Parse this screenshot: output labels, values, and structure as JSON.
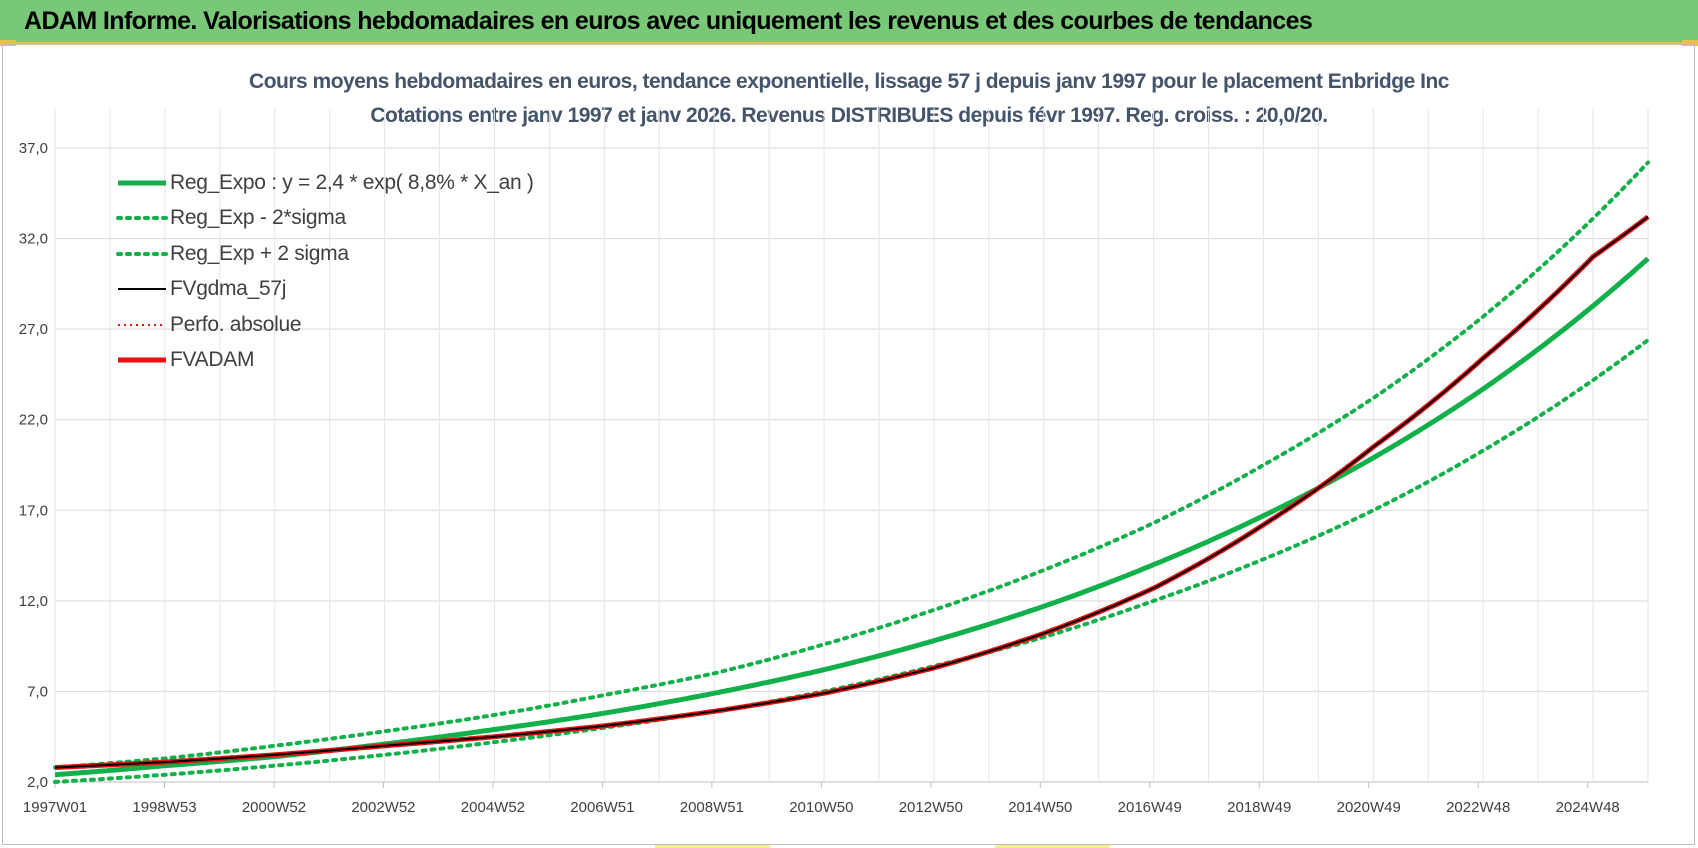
{
  "header": {
    "title": "ADAM Informe. Valorisations hebdomadaires en euros avec uniquement les revenus et des courbes de tendances"
  },
  "colors": {
    "header_bg": "#78c878",
    "green": "#12b04a",
    "red": "#e61010",
    "black": "#000000",
    "title": "#44546a"
  },
  "chart_data": {
    "type": "line",
    "title": "Cours moyens hebdomadaires en euros, tendance exponentielle, lissage 57 j depuis janv 1997  pour le placement Enbridge Inc",
    "subtitle": "Cotations entre janv 1997 et janv 2026. Revenus DISTRIBUES depuis févr 1997. Reg. croiss. : 20,0/20.",
    "x_tick_labels": [
      "1997W01",
      "1998W53",
      "2000W52",
      "2002W52",
      "2004W52",
      "2006W51",
      "2008W51",
      "2010W50",
      "2012W50",
      "2014W50",
      "2016W49",
      "2018W49",
      "2020W49",
      "2022W48",
      "2024W48"
    ],
    "x_range_years": [
      1997.0,
      2026.0
    ],
    "y_tick_labels": [
      "2,0",
      "7,0",
      "12,0",
      "17,0",
      "22,0",
      "27,0",
      "32,0",
      "37,0"
    ],
    "ylim": [
      2.0,
      37.0
    ],
    "grid": true,
    "legend_position": "top-left",
    "series": [
      {
        "name": "Reg_Expo : y = 2,4 * exp( 8,8% *  X_an )",
        "style": "solid-green",
        "x": [
          1997,
          1999,
          2001,
          2003,
          2005,
          2007,
          2009,
          2011,
          2013,
          2015,
          2017,
          2019,
          2021,
          2023,
          2026
        ],
        "y": [
          2.4,
          2.9,
          3.4,
          4.1,
          4.9,
          5.8,
          6.9,
          8.2,
          9.8,
          11.7,
          14.0,
          16.7,
          19.9,
          23.7,
          30.9
        ]
      },
      {
        "name": "Reg_Exp - 2*sigma",
        "style": "dotted-green",
        "x": [
          1997,
          1999,
          2001,
          2003,
          2005,
          2007,
          2009,
          2011,
          2013,
          2015,
          2017,
          2019,
          2021,
          2023,
          2026
        ],
        "y": [
          2.0,
          2.4,
          2.9,
          3.5,
          4.2,
          5.0,
          5.9,
          7.0,
          8.4,
          10.0,
          12.0,
          14.3,
          17.0,
          20.3,
          26.4
        ]
      },
      {
        "name": "Reg_Exp + 2 sigma",
        "style": "dotted-green",
        "x": [
          1997,
          1999,
          2001,
          2003,
          2005,
          2007,
          2009,
          2011,
          2013,
          2015,
          2017,
          2019,
          2021,
          2023,
          2026
        ],
        "y": [
          2.8,
          3.3,
          4.0,
          4.8,
          5.7,
          6.8,
          8.0,
          9.6,
          11.5,
          13.7,
          16.3,
          19.5,
          23.2,
          27.7,
          36.2
        ]
      },
      {
        "name": "FVgdma_57j",
        "style": "solid-black",
        "x": [
          1997,
          1999,
          2001,
          2003,
          2005,
          2007,
          2009,
          2011,
          2013,
          2015,
          2017,
          2019,
          2021,
          2023,
          2025,
          2026
        ],
        "y": [
          2.8,
          3.1,
          3.5,
          4.0,
          4.5,
          5.1,
          5.9,
          6.9,
          8.3,
          10.2,
          12.7,
          16.2,
          20.5,
          25.4,
          31.0,
          33.2
        ]
      },
      {
        "name": "Perfo. absolue",
        "style": "dotted-red",
        "x": [
          1997,
          1999,
          2001,
          2003,
          2005,
          2007,
          2009,
          2011,
          2013,
          2015,
          2017,
          2019,
          2021,
          2023,
          2025,
          2026
        ],
        "y": [
          2.8,
          3.1,
          3.5,
          4.0,
          4.5,
          5.1,
          5.9,
          6.9,
          8.3,
          10.2,
          12.7,
          16.2,
          20.5,
          25.4,
          31.0,
          33.2
        ]
      },
      {
        "name": "FVADAM",
        "style": "solid-red",
        "x": [
          1997,
          1999,
          2001,
          2003,
          2005,
          2007,
          2009,
          2011,
          2013,
          2015,
          2017,
          2019,
          2021,
          2023,
          2025,
          2026
        ],
        "y": [
          2.8,
          3.1,
          3.5,
          4.0,
          4.5,
          5.1,
          5.9,
          6.9,
          8.3,
          10.2,
          12.7,
          16.2,
          20.5,
          25.4,
          31.0,
          33.2
        ]
      }
    ]
  }
}
